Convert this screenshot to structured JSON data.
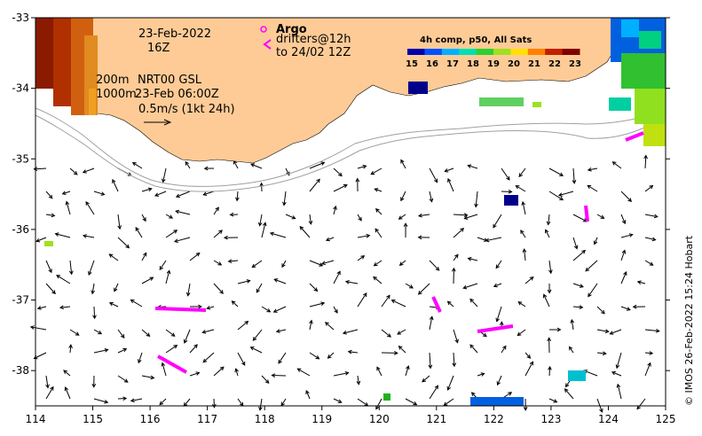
{
  "map": {
    "lon_ticks": [
      "114",
      "115",
      "116",
      "117",
      "118",
      "119",
      "120",
      "121",
      "122",
      "123",
      "124",
      "125"
    ],
    "lat_ticks": [
      "-33",
      "-34",
      "-35",
      "-36",
      "-37",
      "-38"
    ],
    "lon_range": [
      114,
      125
    ],
    "lat_range": [
      -38.5,
      -33
    ]
  },
  "annotations": {
    "date": "23-Feb-2022",
    "hour": "16Z",
    "contour_200": "200m",
    "contour_1000": "1000m",
    "product": "NRT00 GSL",
    "product_time": "23-Feb 06:00Z",
    "scale_label": "0.5m/s (1kt 24h)"
  },
  "legend": {
    "argo_label": "Argo",
    "drifters_label": "drifters@12h",
    "drifters_until": "to 24/02 12Z"
  },
  "colorbar": {
    "title": "4h comp, p50, All Sats",
    "ticks": [
      "15",
      "16",
      "17",
      "18",
      "19",
      "20",
      "21",
      "22",
      "23"
    ],
    "colors": [
      "#0000aa",
      "#0050ff",
      "#00b0ff",
      "#00e0b0",
      "#30d030",
      "#a0e020",
      "#ffe000",
      "#ff8000",
      "#c02000",
      "#800000"
    ]
  },
  "credit": "© IMOS 26-Feb-2022 15:24 Hobart",
  "colors": {
    "land": "#fecb96",
    "drifter": "#ff00ff",
    "arrow": "#000000",
    "contour": "#a0a0a0"
  }
}
